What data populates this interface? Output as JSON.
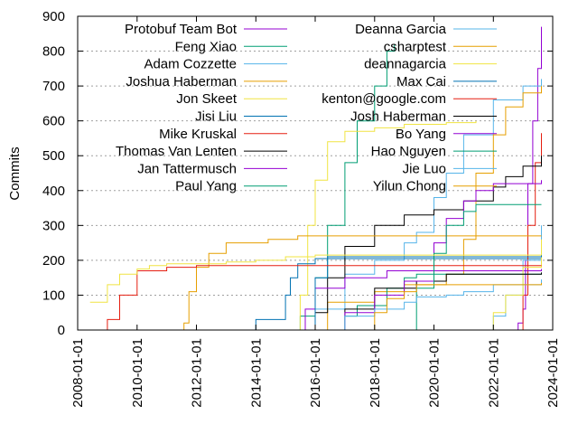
{
  "chart_data": {
    "type": "line",
    "title": "",
    "xlabel": "",
    "ylabel": "Commits",
    "xlim": [
      "2008-01-01",
      "2024-01-01"
    ],
    "ylim": [
      0,
      900
    ],
    "yticks": [
      0,
      100,
      200,
      300,
      400,
      500,
      600,
      700,
      800,
      900
    ],
    "xticks": [
      "2008-01-01",
      "2010-01-01",
      "2012-01-01",
      "2014-01-01",
      "2016-01-01",
      "2018-01-01",
      "2020-01-01",
      "2022-01-01",
      "2024-01-01"
    ],
    "grid": "dotted horizontal",
    "legend_position": "top, two columns",
    "series": [
      {
        "name": "Protobuf Team Bot",
        "color": "#9400d3",
        "points": [
          [
            "2022-07-01",
            0
          ],
          [
            "2022-11-01",
            20
          ],
          [
            "2023-01-01",
            60
          ],
          [
            "2023-02-01",
            200
          ],
          [
            "2023-03-01",
            420
          ],
          [
            "2023-05-01",
            600
          ],
          [
            "2023-07-01",
            750
          ],
          [
            "2023-08-15",
            870
          ]
        ]
      },
      {
        "name": "Feng Xiao",
        "color": "#009e73",
        "points": [
          [
            "2015-03-01",
            0
          ],
          [
            "2015-07-01",
            40
          ],
          [
            "2016-01-01",
            150
          ],
          [
            "2016-06-01",
            300
          ],
          [
            "2017-01-01",
            480
          ],
          [
            "2017-06-01",
            600
          ],
          [
            "2018-01-01",
            700
          ],
          [
            "2018-06-01",
            800
          ],
          [
            "2018-09-01",
            820
          ]
        ]
      },
      {
        "name": "Adam Cozzette",
        "color": "#56b4e9",
        "points": [
          [
            "2015-06-01",
            0
          ],
          [
            "2016-01-01",
            60
          ],
          [
            "2017-01-01",
            160
          ],
          [
            "2018-01-01",
            200
          ],
          [
            "2019-01-01",
            250
          ],
          [
            "2019-06-01",
            280
          ],
          [
            "2020-01-01",
            380
          ],
          [
            "2020-06-01",
            450
          ],
          [
            "2021-01-01",
            560
          ],
          [
            "2022-01-01",
            660
          ],
          [
            "2023-01-01",
            700
          ],
          [
            "2023-08-15",
            720
          ]
        ]
      },
      {
        "name": "Joshua Haberman",
        "color": "#e69f00",
        "points": [
          [
            "2015-06-01",
            0
          ],
          [
            "2016-06-01",
            80
          ],
          [
            "2018-01-01",
            110
          ],
          [
            "2019-01-01",
            130
          ],
          [
            "2020-06-01",
            160
          ],
          [
            "2021-01-01",
            260
          ],
          [
            "2021-06-01",
            450
          ],
          [
            "2022-01-01",
            560
          ],
          [
            "2022-06-01",
            640
          ],
          [
            "2023-01-01",
            680
          ],
          [
            "2023-08-15",
            700
          ]
        ]
      },
      {
        "name": "Jon Skeet",
        "color": "#f0e442",
        "points": [
          [
            "2015-05-01",
            0
          ],
          [
            "2015-07-01",
            100
          ],
          [
            "2015-10-01",
            300
          ],
          [
            "2016-01-01",
            430
          ],
          [
            "2016-06-01",
            540
          ],
          [
            "2017-01-01",
            570
          ],
          [
            "2018-01-01",
            580
          ],
          [
            "2019-01-01",
            590
          ],
          [
            "2020-06-01",
            595
          ],
          [
            "2021-06-01",
            600
          ]
        ]
      },
      {
        "name": "Jisi Liu",
        "color": "#0072b2",
        "points": [
          [
            "2013-08-01",
            0
          ],
          [
            "2014-01-01",
            30
          ],
          [
            "2015-01-01",
            100
          ],
          [
            "2015-03-01",
            150
          ],
          [
            "2015-06-01",
            190
          ],
          [
            "2016-01-01",
            205
          ],
          [
            "2023-08-15",
            210
          ]
        ]
      },
      {
        "name": "Mike Kruskal",
        "color": "#e51e10",
        "points": [
          [
            "2022-10-01",
            0
          ],
          [
            "2023-01-01",
            100
          ],
          [
            "2023-03-01",
            300
          ],
          [
            "2023-06-01",
            480
          ],
          [
            "2023-08-15",
            565
          ]
        ]
      },
      {
        "name": "Thomas Van Lenten",
        "color": "#000000",
        "points": [
          [
            "2015-05-01",
            0
          ],
          [
            "2016-01-01",
            50
          ],
          [
            "2016-06-01",
            150
          ],
          [
            "2017-01-01",
            240
          ],
          [
            "2018-01-01",
            300
          ],
          [
            "2019-01-01",
            330
          ],
          [
            "2020-01-01",
            345
          ],
          [
            "2021-01-01",
            370
          ],
          [
            "2022-01-01",
            410
          ],
          [
            "2022-06-01",
            440
          ],
          [
            "2023-01-01",
            470
          ],
          [
            "2023-08-15",
            500
          ]
        ]
      },
      {
        "name": "Jan Tattermusch",
        "color": "#9400d3",
        "points": [
          [
            "2015-06-01",
            0
          ],
          [
            "2015-09-01",
            60
          ],
          [
            "2016-01-01",
            120
          ],
          [
            "2017-01-01",
            150
          ],
          [
            "2018-06-01",
            170
          ],
          [
            "2023-08-15",
            175
          ]
        ]
      },
      {
        "name": "Paul Yang",
        "color": "#009e73",
        "points": [
          [
            "2016-06-01",
            0
          ],
          [
            "2017-01-01",
            40
          ],
          [
            "2017-06-01",
            70
          ],
          [
            "2018-06-01",
            120
          ],
          [
            "2019-01-01",
            150
          ],
          [
            "2019-06-01",
            160
          ],
          [
            "2023-08-15",
            165
          ]
        ]
      },
      {
        "name": "Deanna Garcia",
        "color": "#56b4e9",
        "points": [
          [
            "2021-09-01",
            0
          ],
          [
            "2022-01-01",
            40
          ],
          [
            "2022-06-01",
            100
          ],
          [
            "2023-01-01",
            200
          ],
          [
            "2023-08-15",
            300
          ]
        ]
      },
      {
        "name": "csharptest",
        "color": "#e69f00",
        "points": [
          [
            "2011-06-01",
            0
          ],
          [
            "2011-08-01",
            20
          ],
          [
            "2011-10-01",
            110
          ],
          [
            "2012-01-01",
            180
          ],
          [
            "2012-06-01",
            220
          ],
          [
            "2013-01-01",
            250
          ],
          [
            "2014-06-01",
            260
          ],
          [
            "2015-06-01",
            270
          ],
          [
            "2023-08-15",
            270
          ]
        ]
      },
      {
        "name": "deannagarcia",
        "color": "#f0e442",
        "points": [
          [
            "2021-09-01",
            0
          ],
          [
            "2022-01-01",
            50
          ],
          [
            "2022-06-01",
            100
          ],
          [
            "2023-01-01",
            180
          ],
          [
            "2023-08-15",
            260
          ]
        ]
      },
      {
        "name": "Max Cai",
        "color": "#0072b2",
        "points": [
          [
            "2015-01-01",
            0
          ],
          [
            "2016-01-01",
            150
          ],
          [
            "2016-06-01",
            210
          ],
          [
            "2023-08-15",
            215
          ]
        ]
      },
      {
        "name": "kenton@google.com",
        "color": "#e51e10",
        "points": [
          [
            "2008-07-01",
            0
          ],
          [
            "2009-01-01",
            30
          ],
          [
            "2009-06-01",
            100
          ],
          [
            "2010-01-01",
            170
          ],
          [
            "2011-01-01",
            180
          ],
          [
            "2012-01-01",
            185
          ],
          [
            "2023-08-15",
            185
          ]
        ]
      },
      {
        "name": "Josh Haberman",
        "color": "#000000",
        "points": [
          [
            "2016-06-01",
            0
          ],
          [
            "2017-01-01",
            60
          ],
          [
            "2018-01-01",
            120
          ],
          [
            "2019-06-01",
            140
          ],
          [
            "2020-06-01",
            160
          ],
          [
            "2023-08-15",
            165
          ]
        ]
      },
      {
        "name": "Bo Yang",
        "color": "#9400d3",
        "points": [
          [
            "2016-01-01",
            0
          ],
          [
            "2017-01-01",
            50
          ],
          [
            "2018-01-01",
            100
          ],
          [
            "2019-01-01",
            140
          ],
          [
            "2020-01-01",
            250
          ],
          [
            "2020-06-01",
            320
          ],
          [
            "2021-01-01",
            370
          ],
          [
            "2021-06-01",
            400
          ],
          [
            "2022-01-01",
            420
          ],
          [
            "2023-08-15",
            430
          ]
        ]
      },
      {
        "name": "Hao Nguyen",
        "color": "#009e73",
        "points": [
          [
            "2019-01-01",
            0
          ],
          [
            "2019-06-01",
            120
          ],
          [
            "2020-01-01",
            220
          ],
          [
            "2020-06-01",
            300
          ],
          [
            "2021-01-01",
            340
          ],
          [
            "2021-06-01",
            360
          ],
          [
            "2023-08-15",
            360
          ]
        ]
      },
      {
        "name": "Jie Luo",
        "color": "#56b4e9",
        "points": [
          [
            "2016-06-01",
            0
          ],
          [
            "2017-01-01",
            40
          ],
          [
            "2018-01-01",
            60
          ],
          [
            "2019-01-01",
            80
          ],
          [
            "2019-06-01",
            95
          ],
          [
            "2020-06-01",
            100
          ],
          [
            "2021-01-01",
            110
          ],
          [
            "2022-01-01",
            130
          ],
          [
            "2023-08-15",
            145
          ]
        ]
      },
      {
        "name": "Yilun Chong",
        "color": "#e69f00",
        "points": [
          [
            "2017-06-01",
            0
          ],
          [
            "2018-01-01",
            50
          ],
          [
            "2018-06-01",
            90
          ],
          [
            "2019-01-01",
            110
          ],
          [
            "2019-06-01",
            130
          ],
          [
            "2023-08-15",
            135
          ]
        ]
      },
      {
        "name": "",
        "color": "#f0e442",
        "points": [
          [
            "2008-06-01",
            80
          ],
          [
            "2009-01-01",
            130
          ],
          [
            "2009-06-01",
            160
          ],
          [
            "2010-01-01",
            175
          ],
          [
            "2010-06-01",
            185
          ],
          [
            "2011-01-01",
            190
          ],
          [
            "2013-01-01",
            195
          ],
          [
            "2014-01-01",
            200
          ],
          [
            "2015-01-01",
            210
          ],
          [
            "2016-01-01",
            215
          ],
          [
            "2023-08-15",
            215
          ]
        ]
      }
    ]
  }
}
